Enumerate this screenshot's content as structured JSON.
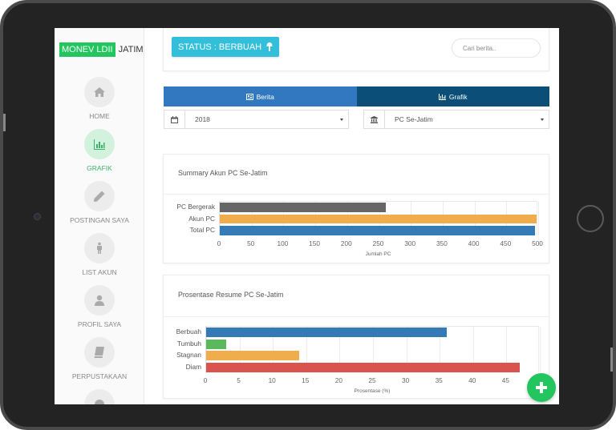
{
  "brand": {
    "highlight": "MONEV LDII",
    "rest": "JATIM",
    "color": "#22c55e"
  },
  "sidebar": {
    "items": [
      {
        "label": "HOME",
        "icon": "home-icon",
        "active": false
      },
      {
        "label": "GRAFIK",
        "icon": "bar-chart-icon",
        "active": true
      },
      {
        "label": "POSTINGAN SAYA",
        "icon": "pencil-icon",
        "active": false
      },
      {
        "label": "LIST AKUN",
        "icon": "person-icon",
        "active": false
      },
      {
        "label": "PROFIL SAYA",
        "icon": "user-icon",
        "active": false
      },
      {
        "label": "PERPUSTAKAAN",
        "icon": "book-icon",
        "active": false
      },
      {
        "label": "",
        "icon": "help-icon",
        "active": false
      }
    ]
  },
  "header": {
    "status_label": "STATUS : BERBUAH",
    "status_icon": "tree-icon",
    "status_color": "#33bfd9",
    "search_placeholder": "Cari berita.."
  },
  "tabs": [
    {
      "label": "Berita",
      "icon": "newspaper-icon",
      "color": "#3178c1"
    },
    {
      "label": "Grafik",
      "icon": "bar-chart-icon",
      "color": "#0b4f79",
      "active": true
    }
  ],
  "filters": {
    "year": {
      "value": "2018",
      "icon": "calendar-icon"
    },
    "region": {
      "value": "PC Se-Jatim",
      "icon": "institution-icon"
    }
  },
  "chart_data": [
    {
      "type": "bar",
      "orientation": "horizontal",
      "title": "Summary Akun PC Se-Jatim",
      "categories": [
        "PC Bergerak",
        "Akun PC",
        "Total PC"
      ],
      "values": [
        261,
        497,
        495
      ],
      "colors": [
        "#666666",
        "#f0ad4e",
        "#337ab7"
      ],
      "xlabel": "Jumlah PC",
      "ylabel": "",
      "xlim": [
        0,
        500
      ],
      "xticks": [
        0,
        50,
        100,
        150,
        200,
        250,
        300,
        350,
        400,
        450,
        500
      ],
      "grid": true,
      "legend": "none"
    },
    {
      "type": "bar",
      "orientation": "horizontal",
      "title": "Prosentase Resume PC Se-Jatim",
      "categories": [
        "Berbuah",
        "Tumbuh",
        "Stagnan",
        "Diam"
      ],
      "values": [
        36,
        3,
        14,
        47
      ],
      "colors": [
        "#337ab7",
        "#5cb85c",
        "#f0ad4e",
        "#d9534f"
      ],
      "xlabel": "Prosentase (%)",
      "ylabel": "",
      "xlim": [
        0,
        50
      ],
      "xticks": [
        0,
        5,
        10,
        15,
        20,
        25,
        30,
        35,
        40,
        45
      ],
      "grid": true,
      "legend": "none"
    }
  ],
  "fab": {
    "icon": "plus-icon",
    "color": "#22c55e"
  }
}
